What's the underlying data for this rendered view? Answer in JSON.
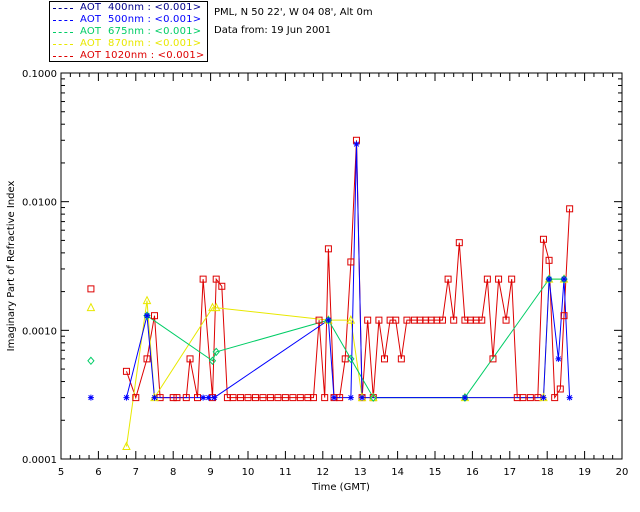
{
  "legend": [
    {
      "label": "AOT  400nm : <0.001>",
      "color": "#00008b"
    },
    {
      "label": "AOT  500nm : <0.001>",
      "color": "#0000ff"
    },
    {
      "label": "AOT  675nm : <0.001>",
      "color": "#00cd66"
    },
    {
      "label": "AOT  870nm : <0.001>",
      "color": "#e8e800"
    },
    {
      "label": "AOT 1020nm : <0.001>",
      "color": "#dd0000"
    }
  ],
  "info": {
    "location": "PML, N 50 22', W 04 08', Alt 0m",
    "date": "Data from: 19 Jun 2001"
  },
  "chart_data": {
    "type": "line",
    "xlabel": "Time (GMT)",
    "ylabel": "Imaginary Part of Refractive Index",
    "xlim": [
      5,
      20
    ],
    "ylim": [
      0.0001,
      0.1
    ],
    "yscale": "log",
    "xticks": [
      "5",
      "6",
      "7",
      "8",
      "9",
      "10",
      "11",
      "12",
      "13",
      "14",
      "15",
      "16",
      "17",
      "18",
      "19",
      "20"
    ],
    "yticks": [
      "0.0001",
      "0.0010",
      "0.0100",
      "0.1000"
    ],
    "legend_summary_points": [
      {
        "series": "AOT 1020nm",
        "x": 5.8,
        "y": 0.0021
      },
      {
        "series": "AOT  870nm",
        "x": 5.8,
        "y": 0.0015
      },
      {
        "series": "AOT  675nm",
        "x": 5.8,
        "y": 0.00058
      },
      {
        "series": "AOT  500nm",
        "x": 5.8,
        "y": 0.0003
      }
    ],
    "series": [
      {
        "name": "AOT 1020nm",
        "color": "#dd0000",
        "marker": "square",
        "x": [
          6.75,
          7.0,
          7.3,
          7.5,
          7.65,
          8.0,
          8.1,
          8.35,
          8.45,
          8.65,
          8.8,
          9.05,
          9.15,
          9.3,
          9.45,
          9.6,
          9.8,
          10.0,
          10.2,
          10.4,
          10.6,
          10.8,
          11.0,
          11.2,
          11.4,
          11.6,
          11.75,
          11.9,
          12.05,
          12.15,
          12.3,
          12.45,
          12.6,
          12.75,
          12.9,
          13.05,
          13.2,
          13.35,
          13.5,
          13.65,
          13.8,
          13.95,
          14.1,
          14.25,
          14.45,
          14.6,
          14.75,
          14.9,
          15.05,
          15.2,
          15.35,
          15.5,
          15.65,
          15.8,
          15.95,
          16.1,
          16.25,
          16.4,
          16.55,
          16.7,
          16.9,
          17.05,
          17.2,
          17.35,
          17.55,
          17.75,
          17.9,
          18.05,
          18.2,
          18.35,
          18.45,
          18.6
        ],
        "y": [
          0.00048,
          0.0003,
          0.0006,
          0.0013,
          0.0003,
          0.0003,
          0.0003,
          0.0003,
          0.0006,
          0.0003,
          0.0025,
          0.0003,
          0.0025,
          0.0022,
          0.0003,
          0.0003,
          0.0003,
          0.0003,
          0.0003,
          0.0003,
          0.0003,
          0.0003,
          0.0003,
          0.0003,
          0.0003,
          0.0003,
          0.0003,
          0.0012,
          0.0003,
          0.0043,
          0.0003,
          0.0003,
          0.0006,
          0.0034,
          0.03,
          0.0003,
          0.0012,
          0.0003,
          0.0012,
          0.0006,
          0.0012,
          0.0012,
          0.0006,
          0.0012,
          0.0012,
          0.0012,
          0.0012,
          0.0012,
          0.0012,
          0.0012,
          0.0025,
          0.0012,
          0.0048,
          0.0012,
          0.0012,
          0.0012,
          0.0012,
          0.0025,
          0.0006,
          0.0025,
          0.0012,
          0.0025,
          0.0003,
          0.0003,
          0.0003,
          0.0003,
          0.0051,
          0.0035,
          0.0003,
          0.00035,
          0.0013,
          0.0088
        ]
      },
      {
        "name": "AOT  870nm",
        "color": "#e8e800",
        "marker": "triangle",
        "x": [
          6.75,
          7.3,
          7.5,
          9.05,
          9.15,
          12.15,
          12.75,
          13.05,
          13.35,
          15.8,
          17.9,
          18.05,
          18.45
        ],
        "y": [
          0.000125,
          0.0017,
          0.0003,
          0.0015,
          0.0015,
          0.0012,
          0.0012,
          0.0003,
          0.0003,
          0.0003,
          0.0003,
          0.0025,
          0.0025
        ]
      },
      {
        "name": "AOT  675nm",
        "color": "#00cd66",
        "marker": "diamond",
        "x": [
          7.3,
          9.05,
          9.15,
          12.15,
          12.75,
          13.35,
          15.8,
          18.05,
          18.45
        ],
        "y": [
          0.0013,
          0.00058,
          0.00068,
          0.0012,
          0.0006,
          0.0003,
          0.0003,
          0.0025,
          0.0025
        ]
      },
      {
        "name": "AOT  500nm",
        "color": "#0000ff",
        "marker": "asterisk",
        "x": [
          6.75,
          7.3,
          7.5,
          8.8,
          8.95,
          9.1,
          12.15,
          12.3,
          12.75,
          12.9,
          13.05,
          15.8,
          17.9,
          18.05,
          18.3,
          18.45,
          18.6
        ],
        "y": [
          0.0003,
          0.0013,
          0.0003,
          0.0003,
          0.0003,
          0.0003,
          0.0012,
          0.0003,
          0.0003,
          0.028,
          0.0003,
          0.0003,
          0.0003,
          0.0025,
          0.0006,
          0.0025,
          0.0003
        ]
      }
    ]
  }
}
